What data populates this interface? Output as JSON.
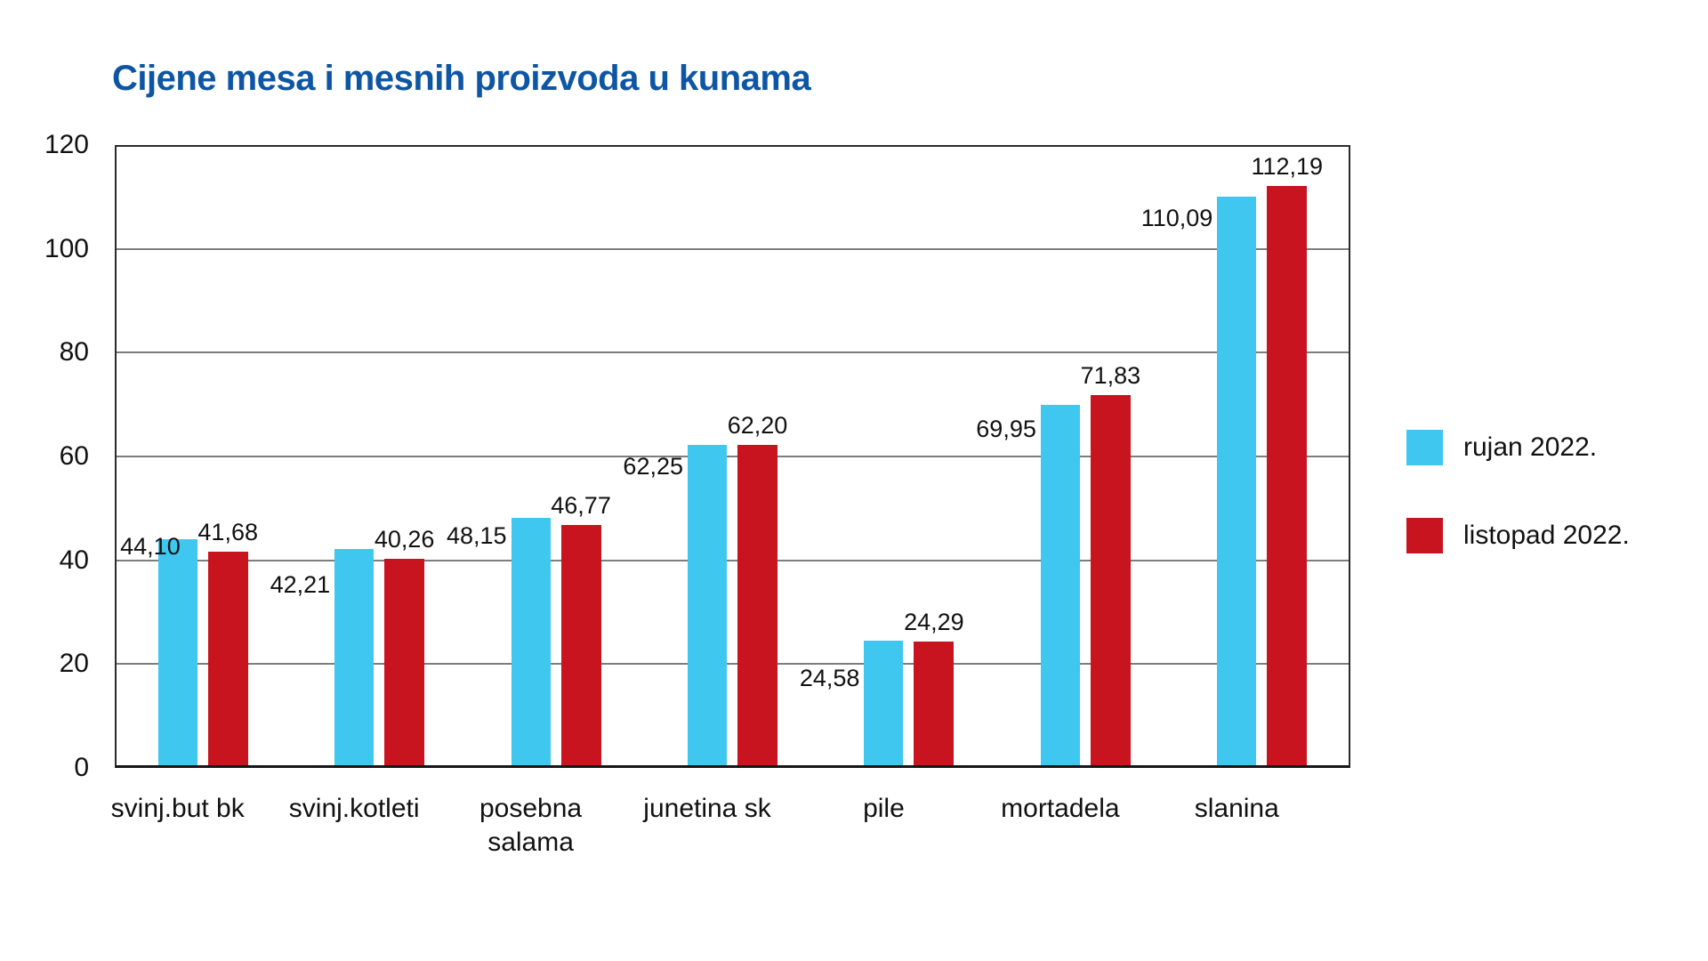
{
  "chart_data": {
    "type": "bar",
    "title": "Cijene mesa i mesnih proizvoda u kunama",
    "title_color": "#0E56A4",
    "categories": [
      "svinj.but bk",
      "svinj.kotleti",
      "posebna salama",
      "junetina sk",
      "pile",
      "mortadela",
      "slanina"
    ],
    "series": [
      {
        "name": "rujan 2022.",
        "color": "#3FC7F0",
        "values": [
          44.1,
          42.21,
          48.15,
          62.25,
          24.58,
          69.95,
          110.09
        ],
        "labels": [
          "44,10",
          "42,21",
          "48,15",
          "62,25",
          "24,58",
          "69,95",
          "110,09"
        ]
      },
      {
        "name": "listopad 2022.",
        "color": "#C8141E",
        "values": [
          41.68,
          40.26,
          46.77,
          62.2,
          24.29,
          71.83,
          112.19
        ],
        "labels": [
          "41,68",
          "40,26",
          "46,77",
          "62,20",
          "24,29",
          "71,83",
          "112,19"
        ]
      }
    ],
    "xlabel": "",
    "ylabel": "",
    "ylim": [
      0,
      120
    ],
    "yticks": [
      0,
      20,
      40,
      60,
      80,
      100,
      120
    ],
    "grid": true,
    "grid_color": "#7d7d7d",
    "axis_color": "#2b2b2b",
    "legend_position": "right",
    "value_label_decimal_separator": ",",
    "layout_hints": {
      "rujan_label_dy": [
        -2,
        30,
        10,
        14,
        32,
        17,
        14
      ],
      "rujan_label_dx": [
        30,
        0,
        0,
        0,
        0,
        0,
        0
      ],
      "listopad_label_gap": 8
    }
  }
}
